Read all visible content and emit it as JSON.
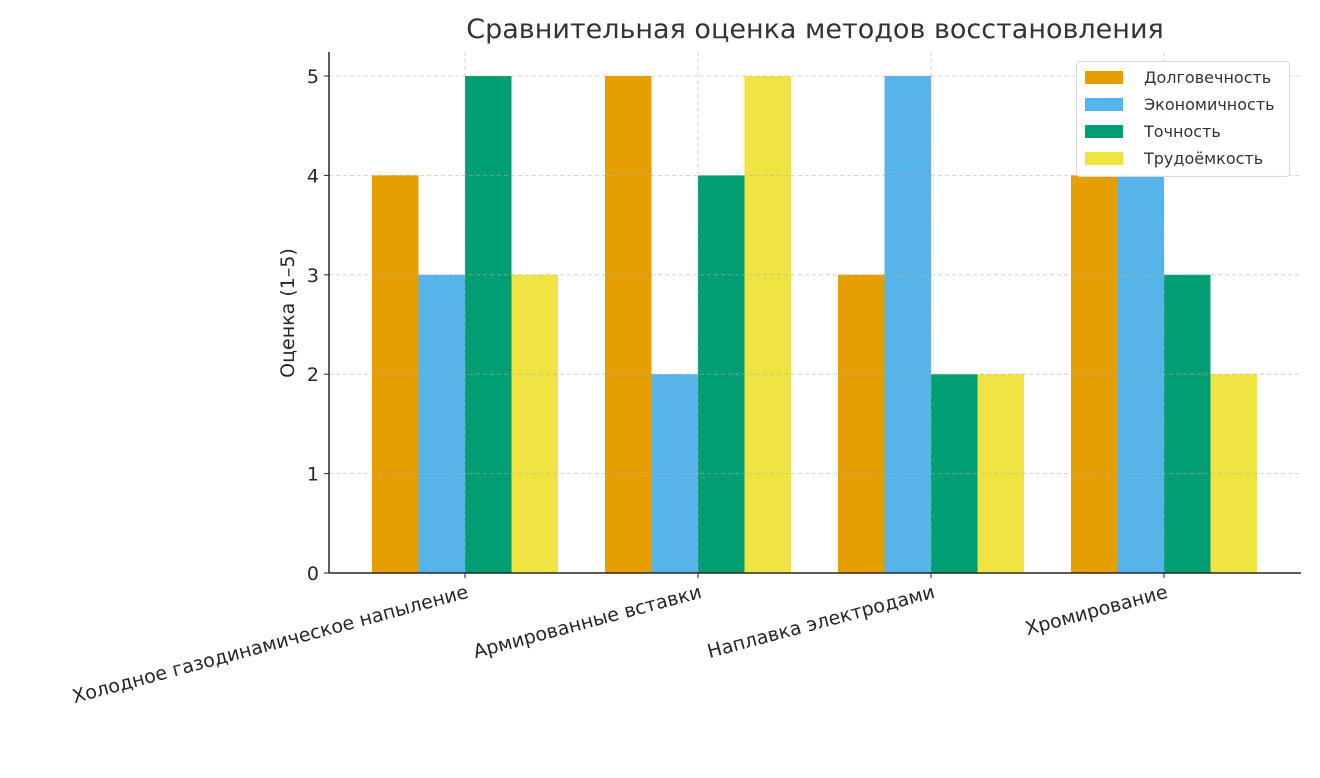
{
  "chart_data": {
    "type": "bar",
    "title": "Сравнительная оценка методов восстановления",
    "xlabel": "",
    "ylabel": "Оценка (1–5)",
    "ylim": [
      0,
      5.25
    ],
    "yticks": [
      0,
      1,
      2,
      3,
      4,
      5
    ],
    "grid": true,
    "legend_position": "upper right",
    "categories": [
      "Холодное газодинамическое напыление",
      "Армированные вставки",
      "Наплавка электродами",
      "Хромирование"
    ],
    "series": [
      {
        "name": "Долговечность",
        "color": "#E69F00",
        "values": [
          4,
          5,
          3,
          4
        ]
      },
      {
        "name": "Экономичность",
        "color": "#56B4E9",
        "values": [
          3,
          2,
          5,
          4
        ]
      },
      {
        "name": "Точность",
        "color": "#009E73",
        "values": [
          5,
          4,
          2,
          3
        ]
      },
      {
        "name": "Трудоёмкость",
        "color": "#F0E442",
        "values": [
          3,
          5,
          2,
          2
        ]
      }
    ]
  }
}
